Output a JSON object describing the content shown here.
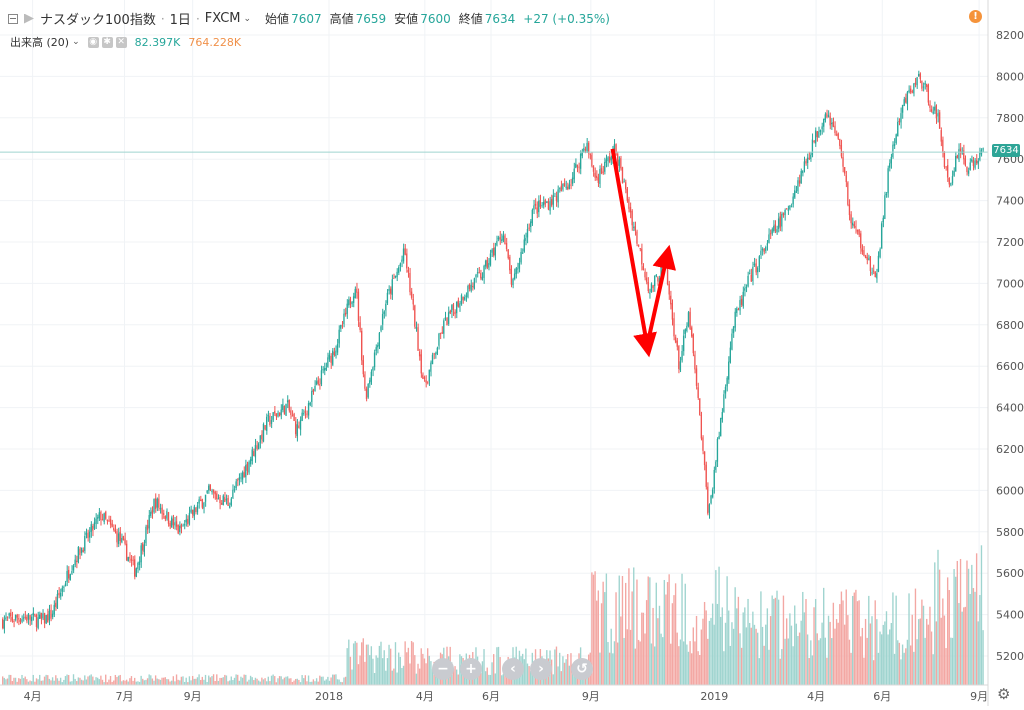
{
  "header": {
    "symbol": "ナスダック100指数",
    "interval": "1日",
    "source": "FXCM",
    "open_label": "始値",
    "open_value": "7607",
    "high_label": "高値",
    "high_value": "7659",
    "low_label": "安値",
    "low_value": "7600",
    "close_label": "終値",
    "close_value": "7634",
    "change": "+27 (+0.35%)"
  },
  "volume_legend": {
    "label": "出来高 (20)",
    "value1": "82.397K",
    "value2": "764.228K"
  },
  "price_tag": "7634",
  "warning_icon": "!",
  "nav_buttons": [
    "−",
    "+",
    "‹",
    "›",
    "↺"
  ],
  "colors": {
    "up": "#26a69a",
    "down": "#ef5350",
    "up_vol": "#9fd4cf",
    "down_vol": "#f3a7a3",
    "annotation": "#ff0000",
    "price_line": "#2ea597"
  },
  "chart_data": {
    "type": "candlestick",
    "y_axis_ticks": [
      "8200",
      "8000",
      "7800",
      "7600",
      "7400",
      "7200",
      "7000",
      "6800",
      "6600",
      "6400",
      "6200",
      "6000",
      "5800",
      "5600",
      "5400",
      "5200"
    ],
    "y_range": [
      5100,
      8300
    ],
    "x_axis_ticks": [
      "4月",
      "7月",
      "9月",
      "2018",
      "4月",
      "6月",
      "9月",
      "2019",
      "4月",
      "6月",
      "9月"
    ],
    "x_tick_positions": [
      0.033,
      0.126,
      0.195,
      0.333,
      0.43,
      0.497,
      0.598,
      0.723,
      0.826,
      0.893,
      0.991
    ],
    "last_price": 7634,
    "price_path": [
      [
        0.0,
        5370
      ],
      [
        0.02,
        5390
      ],
      [
        0.04,
        5370
      ],
      [
        0.05,
        5400
      ],
      [
        0.07,
        5640
      ],
      [
        0.1,
        5880
      ],
      [
        0.12,
        5760
      ],
      [
        0.135,
        5610
      ],
      [
        0.155,
        5950
      ],
      [
        0.18,
        5800
      ],
      [
        0.21,
        5990
      ],
      [
        0.23,
        5940
      ],
      [
        0.25,
        6130
      ],
      [
        0.27,
        6330
      ],
      [
        0.29,
        6410
      ],
      [
        0.3,
        6290
      ],
      [
        0.32,
        6500
      ],
      [
        0.34,
        6700
      ],
      [
        0.36,
        7000
      ],
      [
        0.37,
        6450
      ],
      [
        0.39,
        6900
      ],
      [
        0.41,
        7150
      ],
      [
        0.43,
        6500
      ],
      [
        0.45,
        6800
      ],
      [
        0.47,
        6950
      ],
      [
        0.49,
        7050
      ],
      [
        0.51,
        7250
      ],
      [
        0.52,
        6980
      ],
      [
        0.54,
        7350
      ],
      [
        0.56,
        7400
      ],
      [
        0.58,
        7500
      ],
      [
        0.595,
        7680
      ],
      [
        0.605,
        7500
      ],
      [
        0.625,
        7650
      ],
      [
        0.645,
        7250
      ],
      [
        0.66,
        6960
      ],
      [
        0.675,
        7100
      ],
      [
        0.69,
        6600
      ],
      [
        0.7,
        6850
      ],
      [
        0.712,
        6300
      ],
      [
        0.72,
        5880
      ],
      [
        0.73,
        6250
      ],
      [
        0.745,
        6800
      ],
      [
        0.76,
        7000
      ],
      [
        0.78,
        7200
      ],
      [
        0.8,
        7350
      ],
      [
        0.82,
        7600
      ],
      [
        0.84,
        7840
      ],
      [
        0.855,
        7650
      ],
      [
        0.865,
        7300
      ],
      [
        0.88,
        7150
      ],
      [
        0.89,
        7000
      ],
      [
        0.905,
        7600
      ],
      [
        0.92,
        7880
      ],
      [
        0.935,
        8000
      ],
      [
        0.955,
        7780
      ],
      [
        0.965,
        7450
      ],
      [
        0.975,
        7660
      ],
      [
        0.985,
        7550
      ],
      [
        1.0,
        7634
      ]
    ],
    "volume_seed_ranges": [
      [
        0.0,
        0.35,
        0.05
      ],
      [
        0.35,
        0.42,
        0.22
      ],
      [
        0.42,
        0.6,
        0.18
      ],
      [
        0.6,
        0.75,
        0.55
      ],
      [
        0.75,
        0.85,
        0.45
      ],
      [
        0.85,
        0.95,
        0.45
      ],
      [
        0.95,
        1.0,
        0.65
      ]
    ],
    "annotations": [
      {
        "type": "arrow",
        "from": [
          0.62,
          7650
        ],
        "to": [
          0.655,
          6700
        ]
      },
      {
        "type": "arrow",
        "from": [
          0.655,
          6700
        ],
        "to": [
          0.675,
          7130
        ]
      }
    ]
  }
}
